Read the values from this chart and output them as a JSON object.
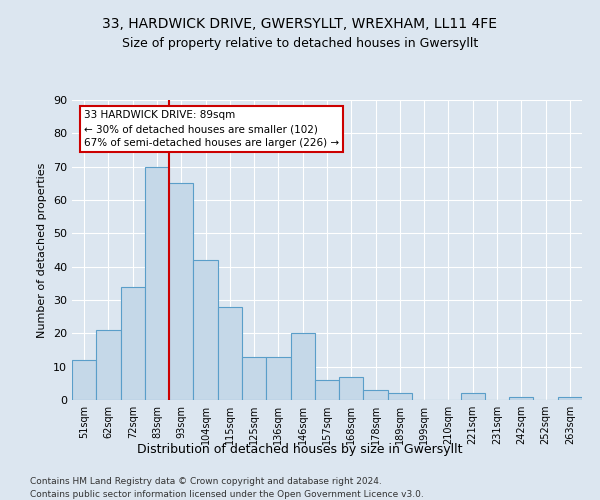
{
  "title1": "33, HARDWICK DRIVE, GWERSYLLT, WREXHAM, LL11 4FE",
  "title2": "Size of property relative to detached houses in Gwersyllt",
  "xlabel": "Distribution of detached houses by size in Gwersyllt",
  "ylabel": "Number of detached properties",
  "categories": [
    "51sqm",
    "62sqm",
    "72sqm",
    "83sqm",
    "93sqm",
    "104sqm",
    "115sqm",
    "125sqm",
    "136sqm",
    "146sqm",
    "157sqm",
    "168sqm",
    "178sqm",
    "189sqm",
    "199sqm",
    "210sqm",
    "221sqm",
    "231sqm",
    "242sqm",
    "252sqm",
    "263sqm"
  ],
  "values": [
    12,
    21,
    34,
    70,
    65,
    42,
    28,
    13,
    13,
    20,
    6,
    7,
    3,
    2,
    0,
    0,
    2,
    0,
    1,
    0,
    1
  ],
  "bar_color": "#c5d8e8",
  "bar_edge_color": "#5a9ec9",
  "vline_x": 3.5,
  "vline_color": "#cc0000",
  "annotation_text": "33 HARDWICK DRIVE: 89sqm\n← 30% of detached houses are smaller (102)\n67% of semi-detached houses are larger (226) →",
  "annotation_box_color": "white",
  "annotation_box_edge": "#cc0000",
  "bg_color": "#dce6f0",
  "plot_bg": "#dce6f0",
  "footer1": "Contains HM Land Registry data © Crown copyright and database right 2024.",
  "footer2": "Contains public sector information licensed under the Open Government Licence v3.0.",
  "ylim": [
    0,
    90
  ],
  "yticks": [
    0,
    10,
    20,
    30,
    40,
    50,
    60,
    70,
    80,
    90
  ]
}
